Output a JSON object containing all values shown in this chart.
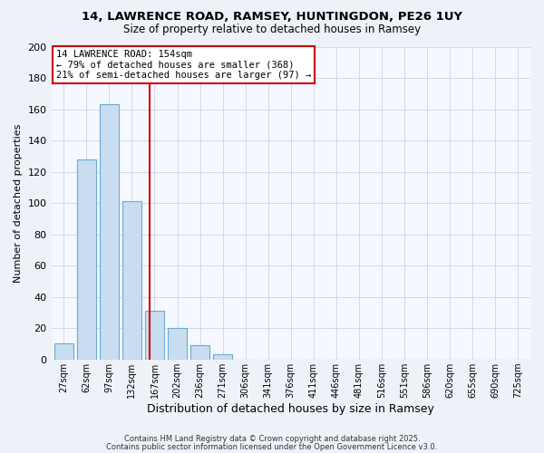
{
  "title1": "14, LAWRENCE ROAD, RAMSEY, HUNTINGDON, PE26 1UY",
  "title2": "Size of property relative to detached houses in Ramsey",
  "xlabel": "Distribution of detached houses by size in Ramsey",
  "ylabel": "Number of detached properties",
  "bar_labels": [
    "27sqm",
    "62sqm",
    "97sqm",
    "132sqm",
    "167sqm",
    "202sqm",
    "236sqm",
    "271sqm",
    "306sqm",
    "341sqm",
    "376sqm",
    "411sqm",
    "446sqm",
    "481sqm",
    "516sqm",
    "551sqm",
    "586sqm",
    "620sqm",
    "655sqm",
    "690sqm",
    "725sqm"
  ],
  "bar_values": [
    10,
    128,
    163,
    101,
    31,
    20,
    9,
    3,
    0,
    0,
    0,
    0,
    0,
    0,
    0,
    0,
    0,
    0,
    0,
    0,
    0
  ],
  "bar_color": "#c9ddf0",
  "bar_edgecolor": "#6aaad4",
  "vline_x": 3.77,
  "vline_color": "#cc0000",
  "annotation_line1": "14 LAWRENCE ROAD: 154sqm",
  "annotation_line2": "← 79% of detached houses are smaller (368)",
  "annotation_line3": "21% of semi-detached houses are larger (97) →",
  "annotation_box_edgecolor": "#cc0000",
  "ylim": [
    0,
    200
  ],
  "yticks": [
    0,
    20,
    40,
    60,
    80,
    100,
    120,
    140,
    160,
    180,
    200
  ],
  "footer1": "Contains HM Land Registry data © Crown copyright and database right 2025.",
  "footer2": "Contains public sector information licensed under the Open Government Licence v3.0.",
  "bg_color": "#eef2f8",
  "plot_bg_color": "#f5f8fe",
  "grid_color": "#d0d8ea"
}
